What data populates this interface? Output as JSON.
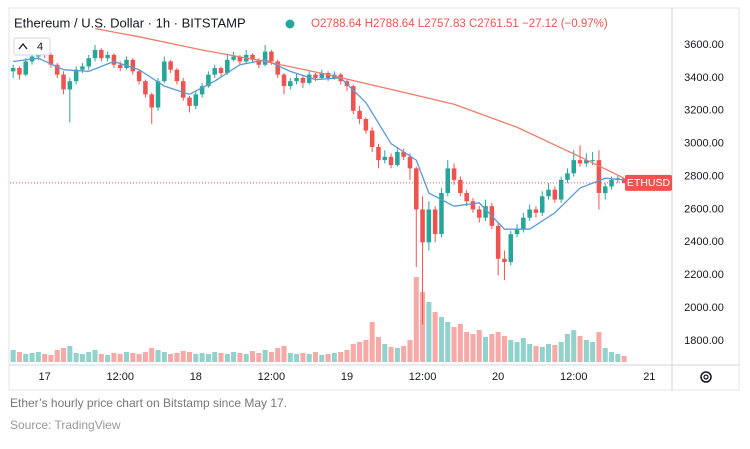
{
  "chart_data": {
    "type": "candlestick",
    "legend_title": "Ethereum / U.S. Dollar · 1h · BITSTAMP",
    "ohlc_text": "O2788.64 H2788.64 L2757.83 C2761.51 −27.12 (−0.97%)",
    "indicator_count": "4",
    "price_label": "ETHUSD",
    "caption": "Ether’s hourly price chart on Bitstamp since May 17.",
    "source": "Source: TradingView",
    "up_color": "#26a69a",
    "down_color": "#ef5350",
    "xlim": [
      -0.5,
      104.6
    ],
    "ylim": [
      1654,
      3813
    ],
    "xticks": [
      {
        "value": 5,
        "label": "17"
      },
      {
        "value": 17,
        "label": "12:00"
      },
      {
        "value": 29,
        "label": "18"
      },
      {
        "value": 41,
        "label": "12:00"
      },
      {
        "value": 53,
        "label": "19"
      },
      {
        "value": 65,
        "label": "12:00"
      },
      {
        "value": 77,
        "label": "20"
      },
      {
        "value": 89,
        "label": "12:00"
      },
      {
        "value": 101,
        "label": "21"
      }
    ],
    "yticks": [
      {
        "value": 1800,
        "label": "1800.00"
      },
      {
        "value": 2000,
        "label": "2000.00"
      },
      {
        "value": 2200,
        "label": "2200.00"
      },
      {
        "value": 2400,
        "label": "2400.00"
      },
      {
        "value": 2600,
        "label": "2600.00"
      },
      {
        "value": 2800,
        "label": "2800.00"
      },
      {
        "value": 3000,
        "label": "3000.00"
      },
      {
        "value": 3200,
        "label": "3200.00"
      },
      {
        "value": 3400,
        "label": "3400.00"
      },
      {
        "value": 3600,
        "label": "3600.00"
      }
    ],
    "grid": false,
    "ohlc": [
      [
        3440,
        3480,
        3400,
        3460
      ],
      [
        3460,
        3470,
        3390,
        3420
      ],
      [
        3420,
        3520,
        3410,
        3500
      ],
      [
        3500,
        3560,
        3480,
        3530
      ],
      [
        3530,
        3580,
        3510,
        3560
      ],
      [
        3560,
        3590,
        3520,
        3540
      ],
      [
        3540,
        3550,
        3460,
        3480
      ],
      [
        3480,
        3490,
        3400,
        3420
      ],
      [
        3420,
        3440,
        3300,
        3330
      ],
      [
        3330,
        3400,
        3130,
        3380
      ],
      [
        3380,
        3470,
        3360,
        3450
      ],
      [
        3450,
        3490,
        3430,
        3470
      ],
      [
        3470,
        3540,
        3450,
        3520
      ],
      [
        3520,
        3600,
        3500,
        3570
      ],
      [
        3570,
        3580,
        3500,
        3520
      ],
      [
        3520,
        3560,
        3500,
        3540
      ],
      [
        3540,
        3550,
        3460,
        3480
      ],
      [
        3480,
        3500,
        3440,
        3460
      ],
      [
        3460,
        3530,
        3450,
        3510
      ],
      [
        3510,
        3520,
        3420,
        3440
      ],
      [
        3440,
        3450,
        3360,
        3380
      ],
      [
        3380,
        3390,
        3280,
        3300
      ],
      [
        3300,
        3310,
        3120,
        3220
      ],
      [
        3220,
        3400,
        3200,
        3380
      ],
      [
        3380,
        3530,
        3370,
        3500
      ],
      [
        3500,
        3510,
        3430,
        3450
      ],
      [
        3450,
        3460,
        3360,
        3380
      ],
      [
        3380,
        3400,
        3260,
        3280
      ],
      [
        3280,
        3290,
        3190,
        3230
      ],
      [
        3230,
        3320,
        3210,
        3300
      ],
      [
        3300,
        3370,
        3280,
        3350
      ],
      [
        3350,
        3440,
        3340,
        3420
      ],
      [
        3420,
        3480,
        3400,
        3460
      ],
      [
        3460,
        3470,
        3410,
        3430
      ],
      [
        3430,
        3540,
        3420,
        3510
      ],
      [
        3510,
        3560,
        3500,
        3530
      ],
      [
        3530,
        3540,
        3480,
        3500
      ],
      [
        3500,
        3570,
        3490,
        3540
      ],
      [
        3540,
        3550,
        3490,
        3510
      ],
      [
        3510,
        3520,
        3460,
        3480
      ],
      [
        3480,
        3600,
        3470,
        3560
      ],
      [
        3560,
        3570,
        3480,
        3500
      ],
      [
        3500,
        3510,
        3400,
        3420
      ],
      [
        3420,
        3430,
        3300,
        3350
      ],
      [
        3350,
        3400,
        3330,
        3380
      ],
      [
        3380,
        3430,
        3360,
        3400
      ],
      [
        3400,
        3410,
        3340,
        3370
      ],
      [
        3370,
        3440,
        3360,
        3420
      ],
      [
        3420,
        3430,
        3380,
        3400
      ],
      [
        3400,
        3450,
        3390,
        3430
      ],
      [
        3430,
        3440,
        3380,
        3400
      ],
      [
        3400,
        3440,
        3390,
        3420
      ],
      [
        3420,
        3430,
        3360,
        3380
      ],
      [
        3380,
        3390,
        3320,
        3350
      ],
      [
        3350,
        3360,
        3180,
        3200
      ],
      [
        3200,
        3230,
        3120,
        3150
      ],
      [
        3150,
        3160,
        3060,
        3080
      ],
      [
        3080,
        3100,
        2950,
        2980
      ],
      [
        2980,
        3000,
        2850,
        2900
      ],
      [
        2900,
        2960,
        2880,
        2920
      ],
      [
        2920,
        2940,
        2850,
        2870
      ],
      [
        2870,
        2980,
        2860,
        2950
      ],
      [
        2950,
        2970,
        2900,
        2920
      ],
      [
        2920,
        2940,
        2780,
        2850
      ],
      [
        2850,
        2860,
        2250,
        2600
      ],
      [
        2600,
        2680,
        1900,
        2400
      ],
      [
        2400,
        2650,
        2350,
        2600
      ],
      [
        2600,
        2620,
        2400,
        2450
      ],
      [
        2450,
        2730,
        2430,
        2700
      ],
      [
        2700,
        2900,
        2680,
        2850
      ],
      [
        2850,
        2880,
        2750,
        2780
      ],
      [
        2780,
        2800,
        2680,
        2700
      ],
      [
        2700,
        2720,
        2620,
        2650
      ],
      [
        2650,
        2670,
        2580,
        2600
      ],
      [
        2600,
        2620,
        2520,
        2550
      ],
      [
        2550,
        2660,
        2530,
        2620
      ],
      [
        2620,
        2640,
        2480,
        2500
      ],
      [
        2500,
        2520,
        2200,
        2300
      ],
      [
        2300,
        2350,
        2170,
        2280
      ],
      [
        2280,
        2470,
        2260,
        2450
      ],
      [
        2450,
        2510,
        2430,
        2480
      ],
      [
        2480,
        2580,
        2460,
        2550
      ],
      [
        2550,
        2630,
        2530,
        2600
      ],
      [
        2600,
        2620,
        2550,
        2580
      ],
      [
        2580,
        2710,
        2560,
        2680
      ],
      [
        2680,
        2760,
        2660,
        2720
      ],
      [
        2720,
        2740,
        2640,
        2660
      ],
      [
        2660,
        2800,
        2640,
        2780
      ],
      [
        2780,
        2850,
        2760,
        2820
      ],
      [
        2820,
        2960,
        2800,
        2900
      ],
      [
        2900,
        2990,
        2860,
        2880
      ],
      [
        2880,
        2940,
        2860,
        2900
      ],
      [
        2900,
        2950,
        2870,
        2900
      ],
      [
        2900,
        2960,
        2600,
        2700
      ],
      [
        2700,
        2760,
        2660,
        2740
      ],
      [
        2740,
        2800,
        2720,
        2780
      ],
      [
        2780,
        2810,
        2760,
        2790
      ],
      [
        2788.64,
        2788.64,
        2757.83,
        2761.51
      ]
    ],
    "volume": [
      12,
      10,
      8,
      9,
      10,
      8,
      7,
      12,
      14,
      16,
      9,
      8,
      10,
      12,
      8,
      7,
      9,
      8,
      10,
      9,
      8,
      10,
      14,
      12,
      10,
      8,
      9,
      11,
      10,
      8,
      9,
      8,
      10,
      9,
      8,
      10,
      9,
      8,
      11,
      9,
      12,
      10,
      14,
      16,
      9,
      8,
      9,
      8,
      10,
      7,
      8,
      9,
      10,
      12,
      18,
      20,
      22,
      40,
      25,
      18,
      15,
      14,
      16,
      22,
      85,
      70,
      60,
      50,
      45,
      40,
      35,
      38,
      30,
      28,
      32,
      25,
      28,
      30,
      26,
      22,
      20,
      24,
      18,
      16,
      15,
      18,
      17,
      20,
      28,
      32,
      26,
      22,
      20,
      30,
      14,
      10,
      8,
      6
    ],
    "series": [
      {
        "color": "#5b9bd5",
        "x": [
          0,
          4,
          8,
          12,
          16,
          20,
          24,
          28,
          32,
          36,
          40,
          44,
          48,
          52,
          56,
          60,
          64,
          66,
          70,
          74,
          78,
          82,
          86,
          90,
          94,
          97
        ],
        "values": [
          3500,
          3520,
          3450,
          3440,
          3500,
          3450,
          3350,
          3300,
          3380,
          3480,
          3510,
          3440,
          3390,
          3400,
          3250,
          3000,
          2900,
          2700,
          2620,
          2640,
          2480,
          2480,
          2580,
          2730,
          2790,
          2780
        ]
      },
      {
        "color": "#ef7b6a",
        "x": [
          13,
          20,
          30,
          40,
          50,
          60,
          70,
          80,
          90,
          97
        ],
        "values": [
          3700,
          3650,
          3570,
          3500,
          3420,
          3330,
          3240,
          3100,
          2920,
          2790
        ]
      }
    ]
  }
}
